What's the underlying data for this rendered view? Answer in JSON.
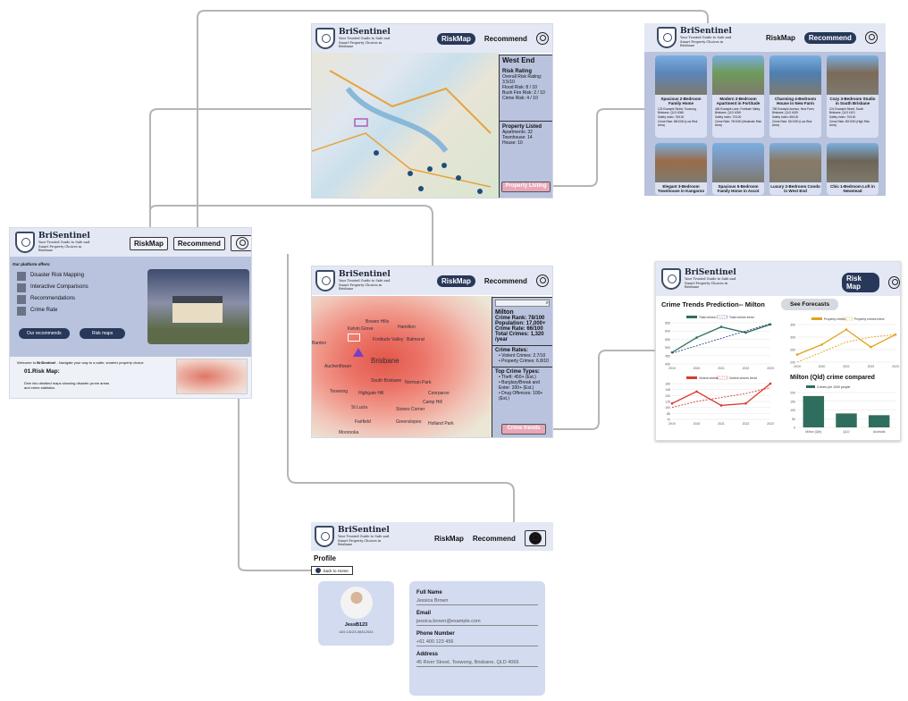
{
  "brand": {
    "name": "BriSentinel",
    "tagline": "Your Trusted Guide to Safe and Smart Property Choices in Brisbane"
  },
  "nav": {
    "riskmap": "RiskMap",
    "recommend": "Recommend",
    "riskmap_alt": "Risk Map"
  },
  "home": {
    "offers_title": "Our platform offers:",
    "offers": [
      "Disaster Risk Mapping",
      "Interactive Comparisons",
      "Recommendations",
      "Crime Rate"
    ],
    "btn_recommends": "Our recommends",
    "btn_riskmaps": "Risk maps",
    "welcome_prefix": "Welcome to ",
    "welcome_brand": "BriSentinel",
    "welcome_rest": " - Navigate your way to a safer, smarter property choice",
    "section_title": "01.Risk Map:",
    "section_desc": "Dive into detailed maps showing disaster-prone areas and crime statistics."
  },
  "westend": {
    "title": "West End",
    "risk_title": "Risk Rating",
    "overall": "Overall Risk Rating: 3.5/10",
    "flood": "Flood Risk: 8 / 10",
    "bushfire": "Bush Fire Risk: 2 / 10",
    "crime": "Crime Risk: 4 / 10",
    "prop_title": "Property Listed",
    "apartments": "Apartments: 32",
    "townhouse": "Townhouse: 14",
    "house": "House: 10",
    "listing_btn": "Property Listing"
  },
  "listings": [
    {
      "title": "Spacious 2-Bedroom Family Home",
      "addr": "123 Example Street, Toowong, Brisbane, QLD 4066",
      "safety": "Safety Index: 78/100",
      "crime": "Crime Rate: 68/1000 (Low Risk Area)"
    },
    {
      "title": "Modern 2-Bedroom Apartment in Fortitude",
      "addr": "456 Example Lane, Fortitude Valley, Brisbane, QLD 4006",
      "safety": "Safety Index: 72/100",
      "crime": "Crime Rate: 75/1000 (Moderate Risk Area)"
    },
    {
      "title": "Charming 4-Bedroom House in New Farm",
      "addr": "789 Example Avenue, New Farm, Brisbane, QLD 4005",
      "safety": "Safety Index: 85/100",
      "crime": "Crime Rate: 52/1000 (Low Risk Area)"
    },
    {
      "title": "Cozy 3-Bedroom Studio in South Brisbane",
      "addr": "101 Example Street, South Brisbane, QLD 4101",
      "safety": "Safety Index: 70/100",
      "crime": "Crime Rate: 80/1000 (High Risk Area)"
    },
    {
      "title": "Elegant 3-Bedroom Townhouse in Kangaroo"
    },
    {
      "title": "Spacious 5-Bedroom Family Home in Ascot"
    },
    {
      "title": "Luxury 2-Bedroom Condo in West End"
    },
    {
      "title": "Chic 1-Bedroom Loft in Newstead"
    }
  ],
  "milton": {
    "title": "Milton",
    "rank": "Crime Rank: 78/100",
    "population": "Population: 17,000+",
    "rate": "Crime Rate: 66/100",
    "total": "Total Crimes: 1,320 /year",
    "rates_title": "Crime Rates:",
    "violent": "Violent Crimes: 2.7/10",
    "property": "Property Crimes: 6.8/10",
    "top_title": "Top Crime Types:",
    "theft": "Theft: 450+ (Est.)",
    "burglary": "Burglary/Break and Enter: 200+ (Est.)",
    "drug": "Drug Offences: 100+ (Est.)",
    "trends_btn": "Crime trends",
    "suburbs": [
      "Bowen Hills",
      "Hamilton",
      "Kelvin Grove",
      "Fortitude Valley",
      "Balmoral",
      "Bardon",
      "Auchenflower",
      "Brisbane",
      "South Brisbane",
      "Norman Park",
      "Toowong",
      "Highgate Hill",
      "Coorparoo",
      "Camp Hill",
      "St Lucia",
      "Stones Corner",
      "Fairfield",
      "Greenslopes",
      "Holland Park",
      "Moorooka"
    ]
  },
  "trends": {
    "title": "Crime Trends Prediction-- Milton",
    "forecast_btn": "See Forecasts",
    "compare_title": "Milton (Qld) crime compared"
  },
  "chart_data": [
    {
      "type": "line",
      "x": [
        2019,
        2020,
        2021,
        2022,
        2023
      ],
      "series": [
        {
          "name": "Total crimes",
          "values": [
            470,
            560,
            625,
            590,
            640
          ]
        },
        {
          "name": "Total crimes trend",
          "values": [
            465,
            510,
            555,
            600,
            645
          ]
        }
      ],
      "ylim": [
        400,
        650
      ],
      "yticks": [
        400,
        450,
        500,
        550,
        600,
        650
      ]
    },
    {
      "type": "line",
      "x": [
        2019,
        2020,
        2021,
        2022,
        2023
      ],
      "series": [
        {
          "name": "Property crimes",
          "values": [
            230,
            270,
            330,
            260,
            310
          ]
        },
        {
          "name": "Property crimes trend",
          "values": [
            200,
            240,
            280,
            300,
            310
          ]
        }
      ],
      "ylim": [
        200,
        350
      ],
      "yticks": [
        200,
        250,
        300,
        350
      ]
    },
    {
      "type": "line",
      "x": [
        2019,
        2020,
        2021,
        2022,
        2023
      ],
      "series": [
        {
          "name": "Violent crimes",
          "values": [
            110,
            140,
            105,
            110,
            160
          ]
        },
        {
          "name": "Violent crimes trend",
          "values": [
            100,
            115,
            125,
            135,
            150
          ]
        }
      ],
      "ylim": [
        70,
        160
      ],
      "yticks": [
        70,
        85,
        100,
        115,
        130,
        145,
        160
      ]
    },
    {
      "type": "bar",
      "title": "Milton (Qld) crime compared",
      "series": [
        {
          "name": "Crimes per 1000 people",
          "values": [
            180,
            80,
            70
          ]
        }
      ],
      "categories": [
        "Milton (Qld)",
        "QLD",
        "Australia"
      ],
      "ylim": [
        0,
        200
      ],
      "yticks": [
        0,
        50,
        100,
        150,
        200
      ]
    }
  ],
  "profile": {
    "title": "Profile",
    "back": "back to Home",
    "username": "JessB123",
    "uid": "UID:13123-08312024",
    "full_name_label": "Full Name",
    "full_name": "Jessica Brown",
    "email_label": "Email",
    "email": "jessica.brown@example.com",
    "phone_label": "Phone Number",
    "phone": "+61 400 123 456",
    "address_label": "Address",
    "address": "45 River Street, Toowong, Brisbane, QLD 4066"
  }
}
